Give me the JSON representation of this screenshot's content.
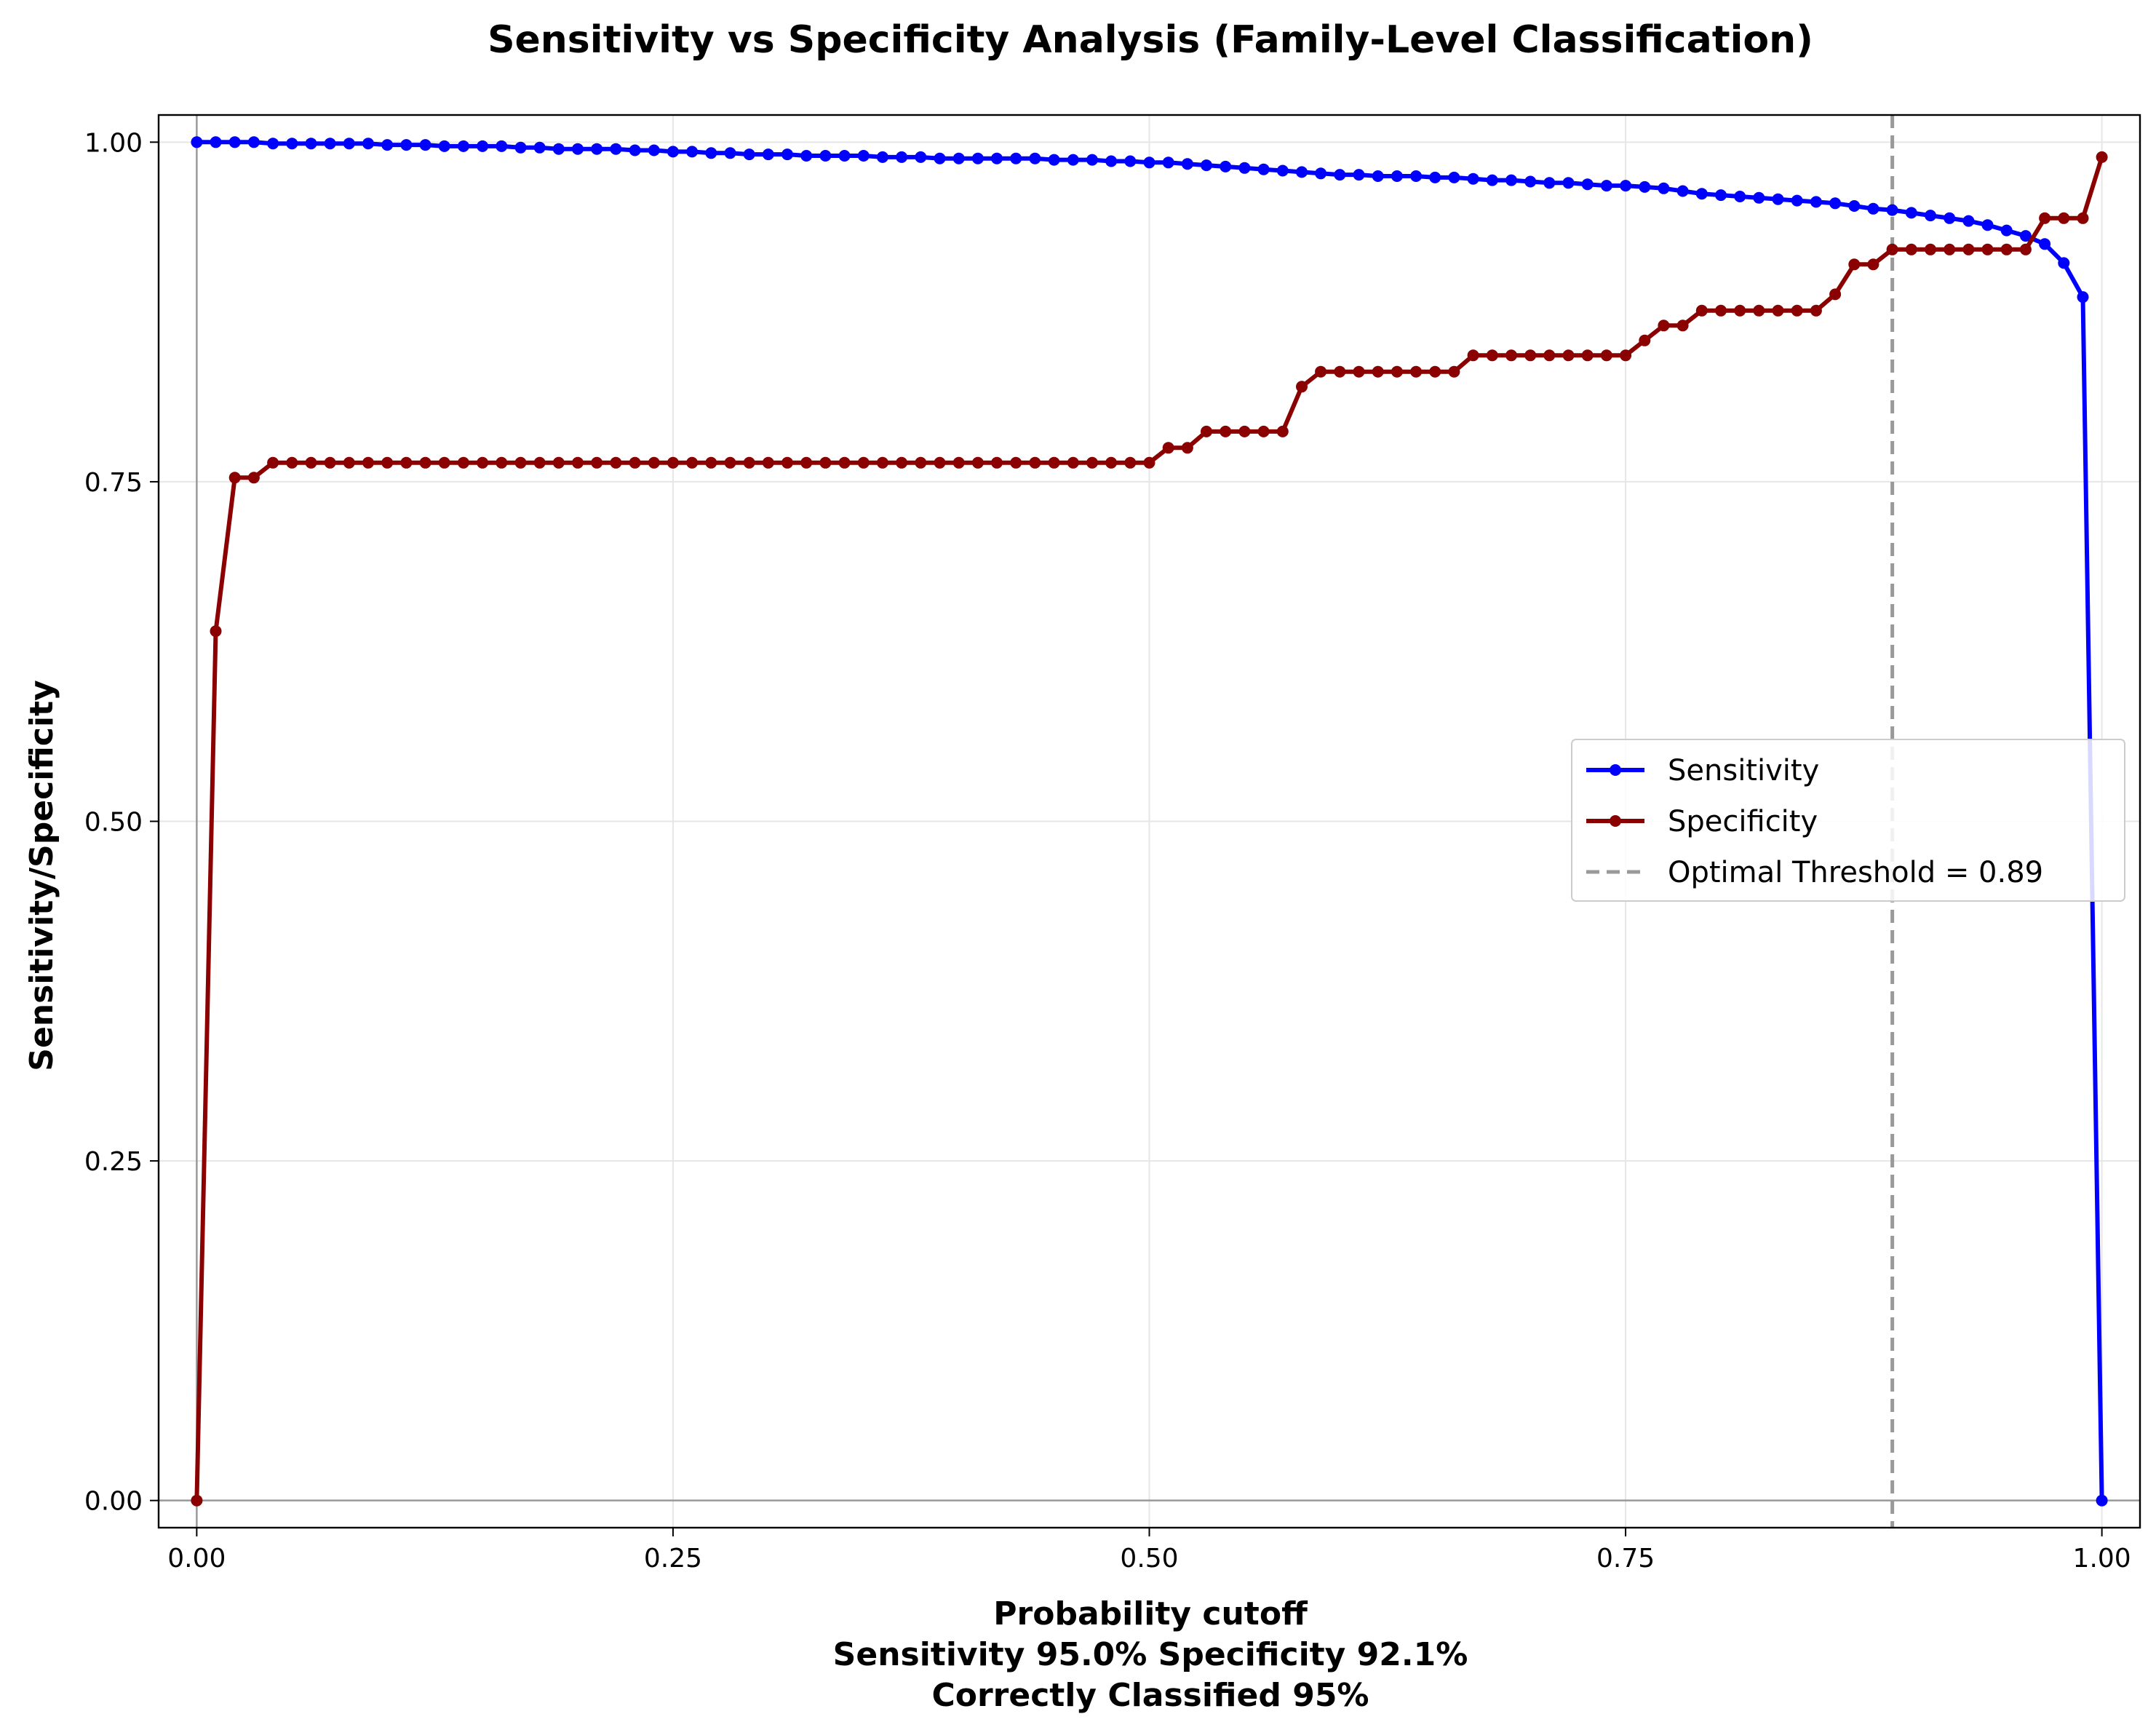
{
  "chart_data": {
    "type": "line",
    "title": "Sensitivity vs Specificity Analysis (Family-Level Classification)",
    "xlabel": "Probability cutoff",
    "xlabel_lines": [
      "Probability cutoff",
      "Sensitivity 95.0% Specificity 92.1%",
      "Correctly Classified 95%"
    ],
    "ylabel": "Sensitivity/Specificity",
    "xlim": [
      -0.02,
      1.02
    ],
    "ylim": [
      -0.02,
      1.02
    ],
    "x_ticks": [
      0.0,
      0.25,
      0.5,
      0.75,
      1.0
    ],
    "x_tick_labels": [
      "0.00",
      "0.25",
      "0.50",
      "0.75",
      "1.00"
    ],
    "y_ticks": [
      0.0,
      0.25,
      0.5,
      0.75,
      1.0
    ],
    "y_tick_labels": [
      "0.00",
      "0.25",
      "0.50",
      "0.75",
      "1.00"
    ],
    "grid": true,
    "legend_position": "center-right",
    "x": [
      0.0,
      0.01,
      0.02,
      0.03,
      0.04,
      0.05,
      0.06,
      0.07,
      0.08,
      0.09,
      0.1,
      0.11,
      0.12,
      0.13,
      0.14,
      0.15,
      0.16,
      0.17,
      0.18,
      0.19,
      0.2,
      0.21,
      0.22,
      0.23,
      0.24,
      0.25,
      0.26,
      0.27,
      0.28,
      0.29,
      0.3,
      0.31,
      0.32,
      0.33,
      0.34,
      0.35,
      0.36,
      0.37,
      0.38,
      0.39,
      0.4,
      0.41,
      0.42,
      0.43,
      0.44,
      0.45,
      0.46,
      0.47,
      0.48,
      0.49,
      0.5,
      0.51,
      0.52,
      0.53,
      0.54,
      0.55,
      0.56,
      0.57,
      0.58,
      0.59,
      0.6,
      0.61,
      0.62,
      0.63,
      0.64,
      0.65,
      0.66,
      0.67,
      0.68,
      0.69,
      0.7,
      0.71,
      0.72,
      0.73,
      0.74,
      0.75,
      0.76,
      0.77,
      0.78,
      0.79,
      0.8,
      0.81,
      0.82,
      0.83,
      0.84,
      0.85,
      0.86,
      0.87,
      0.88,
      0.89,
      0.9,
      0.91,
      0.92,
      0.93,
      0.94,
      0.95,
      0.96,
      0.97,
      0.98,
      0.99,
      1.0
    ],
    "series": [
      {
        "name": "Sensitivity",
        "color": "#0000ff",
        "values": [
          1.0,
          1.0,
          1.0,
          1.0,
          0.999,
          0.999,
          0.999,
          0.999,
          0.999,
          0.999,
          0.998,
          0.998,
          0.998,
          0.997,
          0.997,
          0.997,
          0.997,
          0.996,
          0.996,
          0.995,
          0.995,
          0.995,
          0.995,
          0.994,
          0.994,
          0.993,
          0.993,
          0.992,
          0.992,
          0.991,
          0.991,
          0.991,
          0.99,
          0.99,
          0.99,
          0.99,
          0.989,
          0.989,
          0.989,
          0.988,
          0.988,
          0.988,
          0.988,
          0.988,
          0.988,
          0.987,
          0.987,
          0.987,
          0.986,
          0.986,
          0.985,
          0.985,
          0.984,
          0.983,
          0.982,
          0.981,
          0.98,
          0.979,
          0.978,
          0.977,
          0.976,
          0.976,
          0.975,
          0.975,
          0.975,
          0.974,
          0.974,
          0.973,
          0.972,
          0.972,
          0.971,
          0.97,
          0.97,
          0.969,
          0.968,
          0.968,
          0.967,
          0.966,
          0.964,
          0.962,
          0.961,
          0.96,
          0.959,
          0.958,
          0.957,
          0.956,
          0.955,
          0.953,
          0.951,
          0.95,
          0.948,
          0.946,
          0.944,
          0.942,
          0.939,
          0.935,
          0.931,
          0.925,
          0.911,
          0.886,
          0.0
        ]
      },
      {
        "name": "Specificity",
        "color": "#8b0000",
        "values": [
          0.0,
          0.64,
          0.753,
          0.753,
          0.764,
          0.764,
          0.764,
          0.764,
          0.764,
          0.764,
          0.764,
          0.764,
          0.764,
          0.764,
          0.764,
          0.764,
          0.764,
          0.764,
          0.764,
          0.764,
          0.764,
          0.764,
          0.764,
          0.764,
          0.764,
          0.764,
          0.764,
          0.764,
          0.764,
          0.764,
          0.764,
          0.764,
          0.764,
          0.764,
          0.764,
          0.764,
          0.764,
          0.764,
          0.764,
          0.764,
          0.764,
          0.764,
          0.764,
          0.764,
          0.764,
          0.764,
          0.764,
          0.764,
          0.764,
          0.764,
          0.764,
          0.775,
          0.775,
          0.787,
          0.787,
          0.787,
          0.787,
          0.787,
          0.82,
          0.831,
          0.831,
          0.831,
          0.831,
          0.831,
          0.831,
          0.831,
          0.831,
          0.843,
          0.843,
          0.843,
          0.843,
          0.843,
          0.843,
          0.843,
          0.843,
          0.843,
          0.854,
          0.865,
          0.865,
          0.876,
          0.876,
          0.876,
          0.876,
          0.876,
          0.876,
          0.876,
          0.888,
          0.91,
          0.91,
          0.921,
          0.921,
          0.921,
          0.921,
          0.921,
          0.921,
          0.921,
          0.921,
          0.944,
          0.944,
          0.944,
          0.989
        ]
      }
    ],
    "reference_lines": [
      {
        "name": "Optimal Threshold = 0.89",
        "x": 0.89,
        "style": "dashed",
        "color": "#999999"
      }
    ],
    "baseline_lines": {
      "x": 0.0,
      "y": 0.0,
      "color": "#999999"
    }
  }
}
